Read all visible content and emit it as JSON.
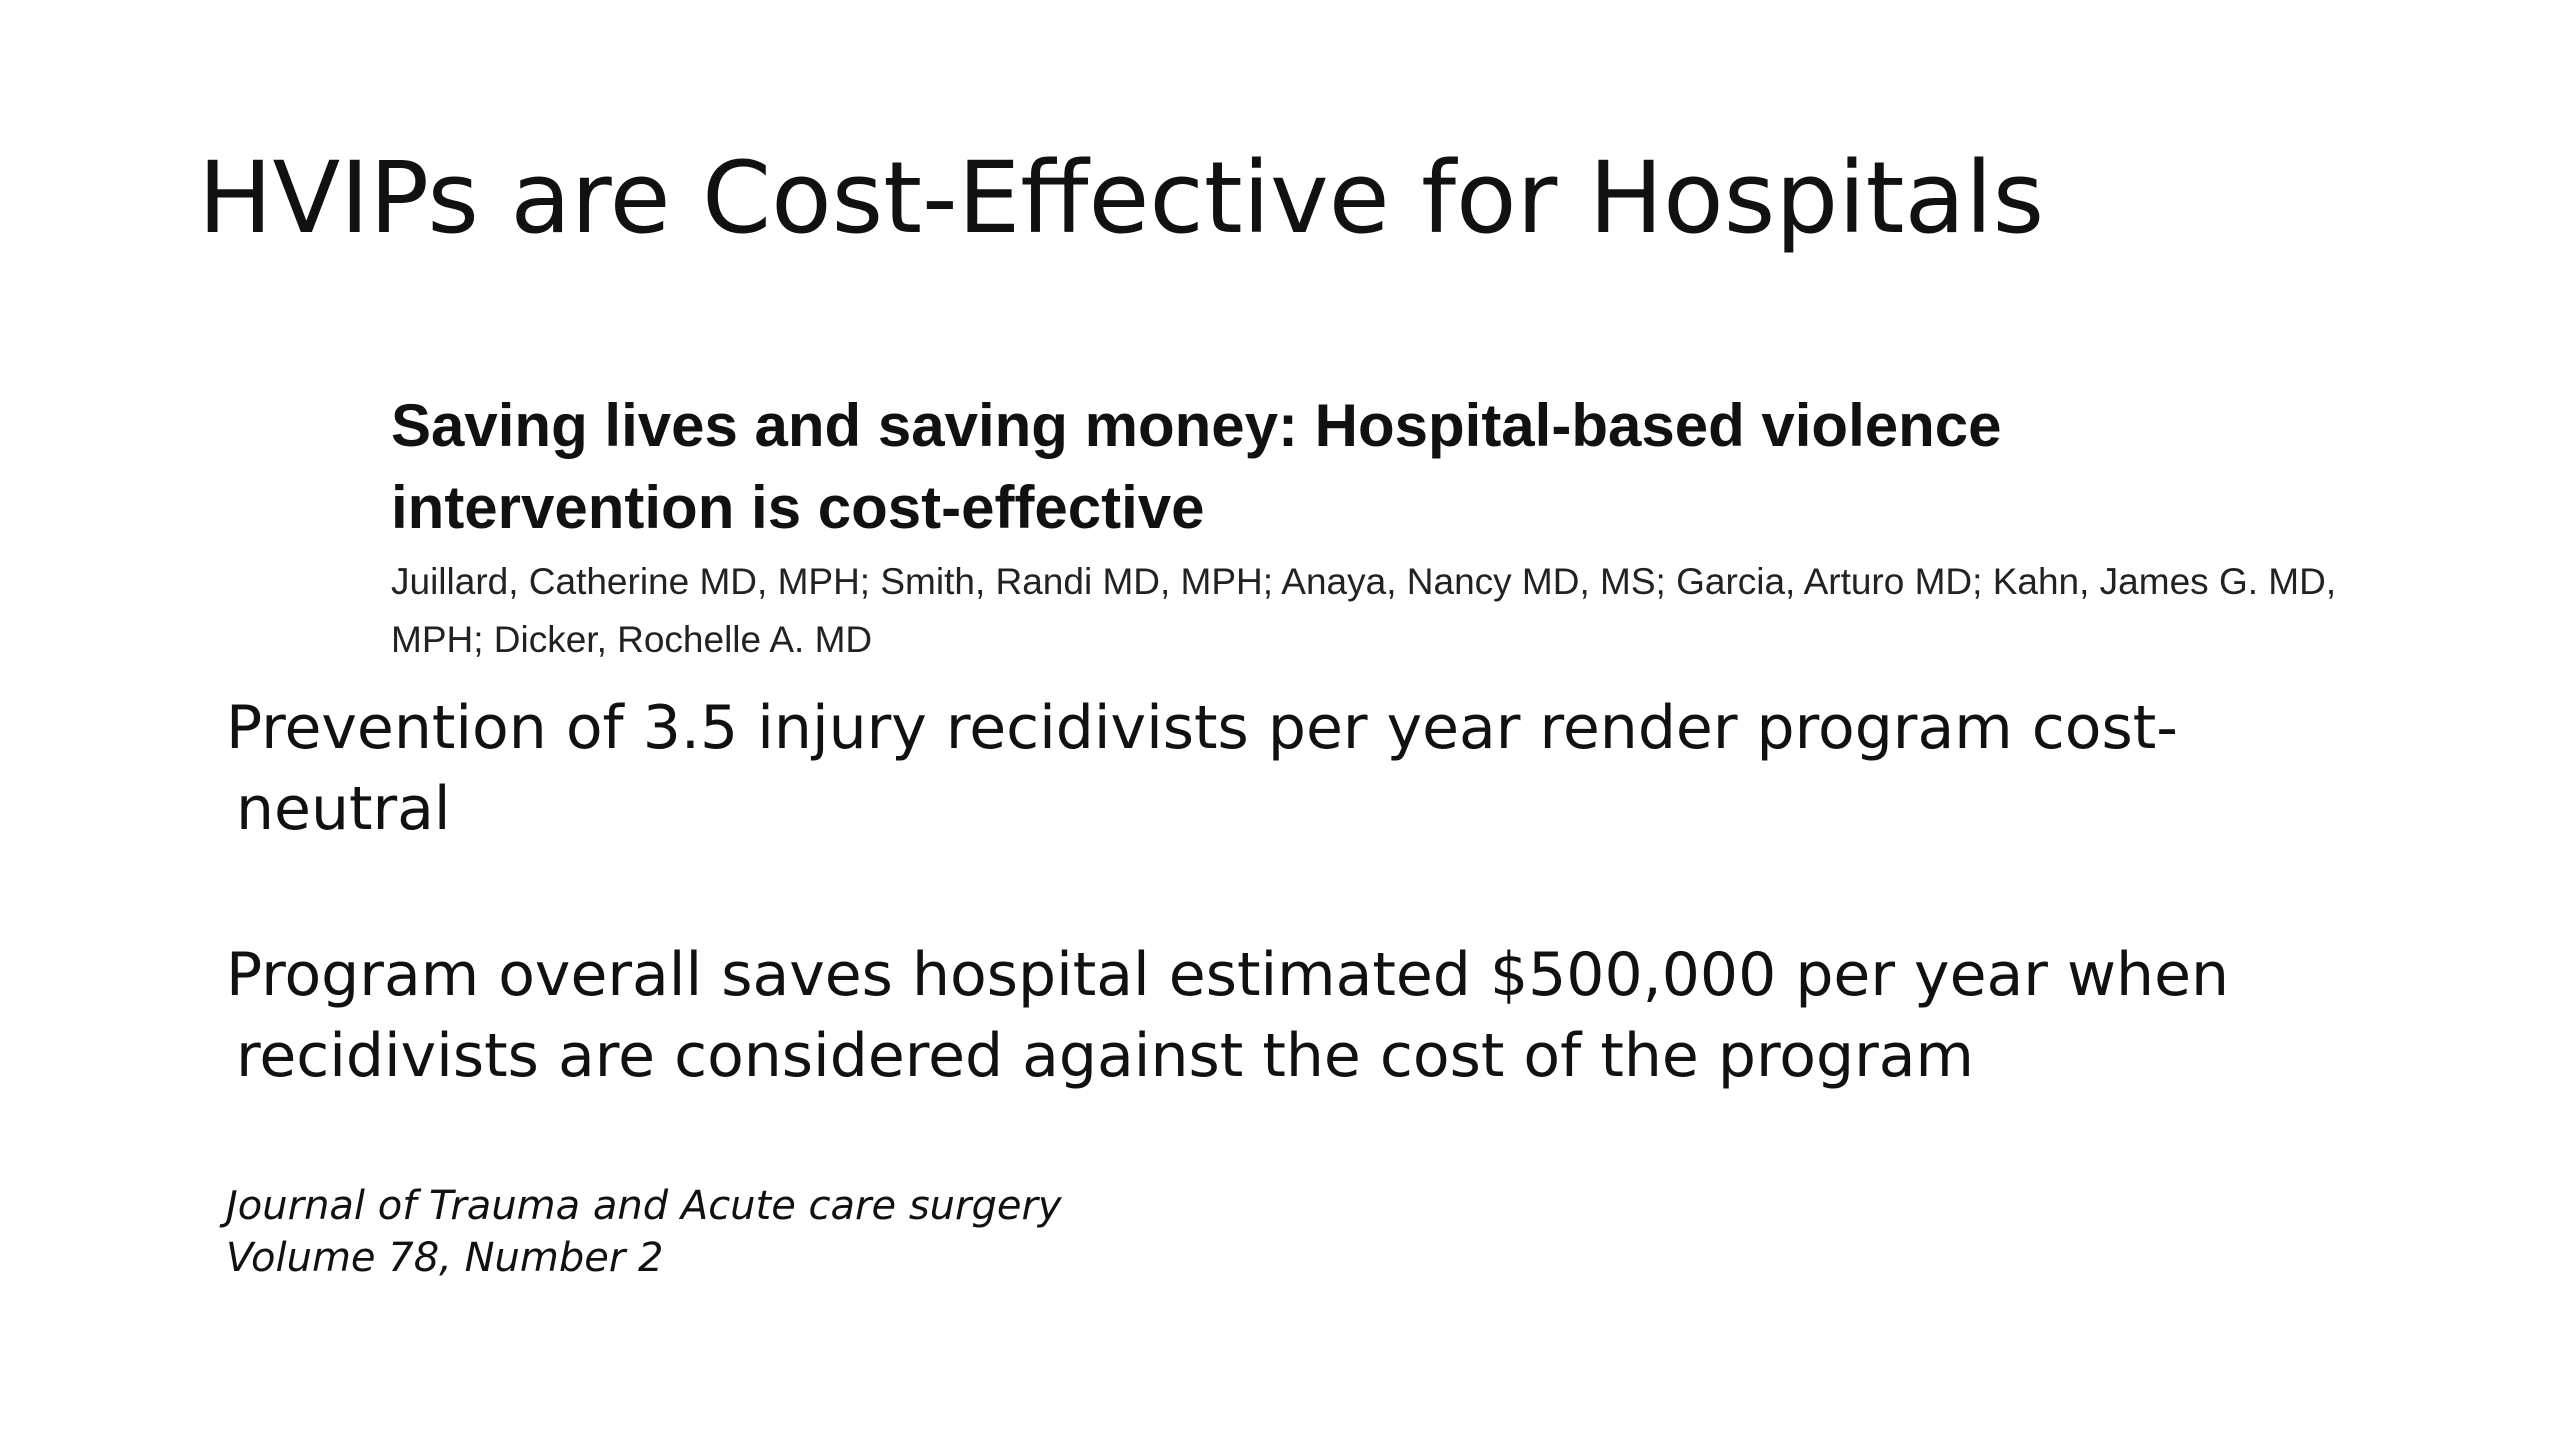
{
  "slide": {
    "title": "HVIPs are Cost-Effective for Hospitals",
    "article": {
      "title": "Saving lives and saving money: Hospital-based violence intervention is cost-effective",
      "authors": "Juillard, Catherine MD, MPH; Smith, Randi MD, MPH; Anaya, Nancy MD, MS; Garcia, Arturo MD; Kahn, James G. MD, MPH; Dicker, Rochelle A. MD"
    },
    "points": [
      {
        "line1": "Prevention of 3.5 injury recidivists per year render program cost-",
        "line2": "neutral"
      },
      {
        "line1": "Program overall saves hospital estimated $500,000 per year when",
        "line2": "recidivists are considered against the cost of the program"
      }
    ],
    "citation": {
      "journal": "Journal of Trauma and Acute care surgery",
      "volume": "Volume 78, Number 2"
    }
  }
}
